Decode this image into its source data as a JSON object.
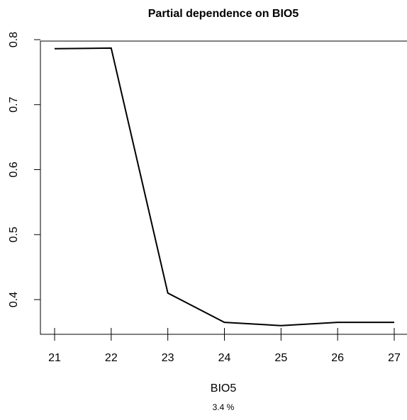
{
  "chart_data": {
    "type": "line",
    "title": "Partial dependence on BIO5",
    "xlabel": "BIO5",
    "ylabel": "",
    "subtitle": "3.4 %",
    "x": [
      21,
      22,
      23,
      24,
      25,
      26,
      27
    ],
    "series": [
      {
        "values": [
          0.786,
          0.787,
          0.41,
          0.365,
          0.36,
          0.365,
          0.365
        ]
      }
    ],
    "xticks": [
      "21",
      "22",
      "23",
      "24",
      "25",
      "26",
      "27"
    ],
    "yticks": [
      "0.4",
      "0.5",
      "0.6",
      "0.7",
      "0.8"
    ],
    "xlim": [
      20.97,
      27.03
    ],
    "ylim": [
      0.34,
      0.8
    ],
    "grid": false,
    "line_color": "#000000"
  }
}
